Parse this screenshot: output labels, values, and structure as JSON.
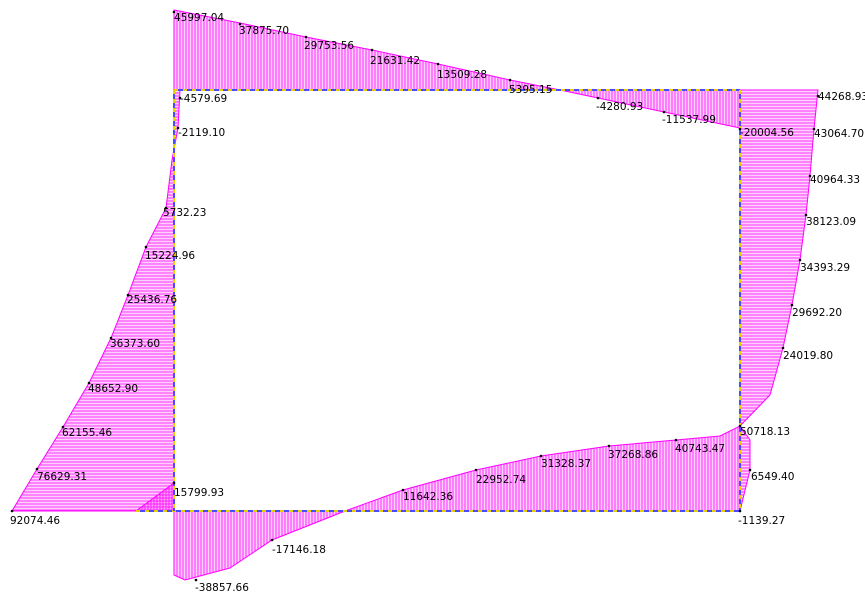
{
  "colors": {
    "diagram_fill": "#ff00ff",
    "frame": "#4a4aff",
    "frame_dash": "#e8d000",
    "label": "#000000"
  },
  "top_beam": {
    "labels": [
      "45997.04",
      "37875.70",
      "29753.56",
      "21631.42",
      "13509.28",
      "5395.15",
      "-4280.93",
      "-11537.99"
    ]
  },
  "left_column": {
    "labels": [
      "-4579.69",
      "-2119.10",
      "5732.23",
      "15224.96",
      "25436.76",
      "36373.60",
      "48652.90",
      "62155.46",
      "76629.31",
      "92074.46"
    ]
  },
  "right_column": {
    "labels": [
      "44268.93",
      "-20004.56",
      "43064.70",
      "40964.33",
      "38123.09",
      "34393.29",
      "29692.20",
      "24019.80",
      "50718.13",
      "6549.40",
      "-1139.27"
    ]
  },
  "bottom_beam": {
    "labels": [
      "15799.93",
      "-38857.66",
      "-17146.18",
      "11642.36",
      "22952.74",
      "31328.37",
      "37268.86",
      "40743.47"
    ]
  }
}
